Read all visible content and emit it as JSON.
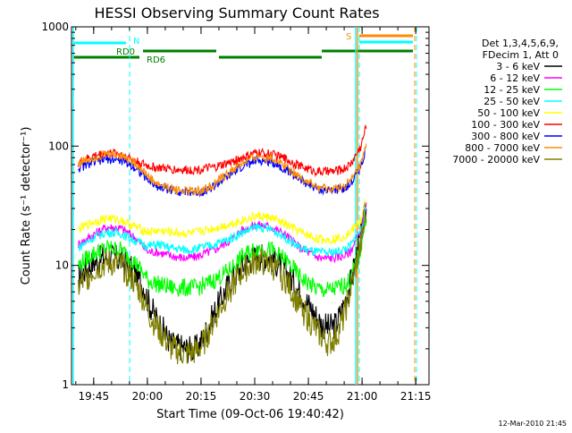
{
  "chart_data": {
    "type": "line",
    "title": "HESSI Observing Summary Count Rates",
    "xlabel": "Start Time (09-Oct-06 19:40:42)",
    "ylabel": "Count Rate (s⁻¹ detector⁻¹)",
    "ylog": true,
    "xlim_minutes": [
      0,
      41.6
    ],
    "ylim": [
      1,
      1000
    ],
    "x_ticks": [
      {
        "label": "19:45",
        "minute": 4.3
      },
      {
        "label": "20:00",
        "minute": 19.3
      },
      {
        "label": "20:15",
        "minute": 34.3
      },
      {
        "label": "20:30",
        "minute": 49.3
      },
      {
        "label": "20:45",
        "minute": 64.3
      },
      {
        "label": "21:00",
        "minute": 79.3
      },
      {
        "label": "21:15",
        "minute": 94.3
      }
    ],
    "y_ticks": [
      {
        "label": "1",
        "value": 1
      },
      {
        "label": "10",
        "value": 10
      },
      {
        "label": "100",
        "value": 100
      },
      {
        "label": "1000",
        "value": 1000
      }
    ],
    "legend": {
      "placement": "right",
      "header": [
        "Det 1,3,4,5,6,9,",
        "FDecim 1, Att 0"
      ],
      "entries": [
        "3 - 6 keV",
        "6 - 12 keV",
        "12 - 25 keV",
        "25 - 50 keV",
        "50 - 100 keV",
        "100 - 300 keV",
        "300 - 800 keV",
        "800 - 7000 keV",
        "7000 - 20000 keV"
      ]
    },
    "series": [
      {
        "name": "3 - 6 keV",
        "color": "#000000",
        "x": [
          0,
          4,
          8,
          12,
          16,
          18.5,
          19.5,
          22,
          26,
          30,
          33,
          35,
          38,
          42,
          46,
          50,
          54,
          58,
          62,
          66,
          68,
          70,
          72,
          74,
          76,
          79,
          80.5
        ],
        "values": [
          8,
          10.5,
          12,
          11,
          8.5,
          6.5,
          5,
          3.5,
          2.2,
          2,
          2,
          2.5,
          4,
          7,
          10,
          12,
          11.5,
          9,
          6,
          4,
          3.2,
          3,
          3.2,
          4.5,
          7,
          18,
          30
        ]
      },
      {
        "name": "6 - 12 keV",
        "color": "#ff00ff",
        "x": [
          0,
          4,
          8,
          12,
          16,
          19.5,
          22,
          26,
          30,
          33,
          35,
          38,
          42,
          46,
          50,
          54,
          58,
          62,
          66,
          68,
          70,
          72,
          74,
          76,
          79,
          80.5
        ],
        "values": [
          15,
          18,
          21,
          20.5,
          17,
          13,
          13,
          12,
          11.5,
          11.8,
          12.5,
          13.5,
          16,
          20,
          22,
          21,
          18,
          14,
          12,
          11.5,
          11.5,
          11.7,
          12,
          13,
          20,
          32
        ]
      },
      {
        "name": "12 - 25 keV",
        "color": "#00ff00",
        "x": [
          0,
          4,
          8,
          12,
          16,
          19.5,
          22,
          26,
          30,
          33,
          35,
          38,
          42,
          46,
          50,
          54,
          58,
          62,
          66,
          68,
          70,
          72,
          74,
          76,
          79,
          80.5
        ],
        "values": [
          10,
          12.5,
          14,
          13.5,
          10.5,
          7.5,
          7,
          6.5,
          6.5,
          6.5,
          6.8,
          7.5,
          9,
          12,
          14,
          13.5,
          11,
          8,
          6.5,
          6.2,
          6.2,
          6.4,
          6.8,
          7.5,
          14,
          28
        ]
      },
      {
        "name": "25 - 50 keV",
        "color": "#00ffff",
        "x": [
          0,
          4,
          8,
          12,
          16,
          19.5,
          22,
          26,
          30,
          33,
          35,
          38,
          42,
          46,
          50,
          54,
          58,
          62,
          66,
          68,
          70,
          72,
          74,
          76,
          79,
          80.5
        ],
        "values": [
          14,
          17,
          19,
          18.5,
          16,
          14.5,
          15,
          14,
          13.5,
          13.7,
          14.2,
          15,
          16.5,
          19,
          21,
          20,
          17,
          14,
          13,
          12.8,
          12.8,
          13,
          13.5,
          14.5,
          20,
          30
        ]
      },
      {
        "name": "50 - 100 keV",
        "color": "#ffff00",
        "x": [
          0,
          4,
          8,
          12,
          16,
          19.5,
          22,
          26,
          30,
          33,
          35,
          38,
          42,
          46,
          50,
          54,
          58,
          62,
          66,
          68,
          70,
          72,
          74,
          76,
          79,
          80.5
        ],
        "values": [
          20,
          23,
          25,
          24,
          21,
          19,
          19.5,
          19,
          18.5,
          18.8,
          19.5,
          20.5,
          22,
          24,
          26,
          25,
          22,
          19,
          17,
          16.5,
          16.5,
          16.8,
          17.5,
          19,
          24,
          34
        ]
      },
      {
        "name": "100 - 300 keV",
        "color": "#ff0000",
        "x": [
          0,
          4,
          8,
          12,
          16,
          19.5,
          22,
          26,
          30,
          33,
          35,
          38,
          42,
          46,
          50,
          54,
          58,
          62,
          66,
          68,
          70,
          72,
          74,
          76,
          79,
          80.5
        ],
        "values": [
          72,
          82,
          88,
          86,
          75,
          68,
          66,
          64,
          63,
          63.5,
          64.5,
          66,
          72,
          80,
          88,
          86,
          78,
          68,
          62,
          61,
          61,
          62,
          64,
          70,
          100,
          150
        ]
      },
      {
        "name": "300 - 800 keV",
        "color": "#0000ff",
        "x": [
          0,
          4,
          8,
          12,
          16,
          19.5,
          22,
          26,
          30,
          33,
          35,
          38,
          42,
          46,
          50,
          54,
          58,
          62,
          66,
          68,
          70,
          72,
          74,
          76,
          79,
          80.5
        ],
        "values": [
          65,
          73,
          78,
          76,
          66,
          52,
          46,
          43,
          41,
          41,
          42,
          46,
          56,
          68,
          76,
          74,
          64,
          52,
          45,
          43,
          42.5,
          43,
          44.5,
          48,
          68,
          100
        ]
      },
      {
        "name": "800 - 7000 keV",
        "color": "#ff8c00",
        "x": [
          0,
          4,
          8,
          12,
          16,
          19.5,
          22,
          26,
          30,
          33,
          35,
          38,
          42,
          46,
          50,
          54,
          58,
          62,
          66,
          68,
          70,
          72,
          74,
          76,
          79,
          80.5
        ],
        "values": [
          72,
          80,
          86,
          84,
          72,
          56,
          48,
          44,
          42,
          42,
          43,
          48,
          60,
          72,
          82,
          80,
          68,
          55,
          46,
          44,
          43.5,
          44,
          46,
          50,
          70,
          100
        ]
      },
      {
        "name": "7000 - 20000 keV",
        "color": "#808000",
        "x": [
          0,
          4,
          8,
          12,
          16,
          18.5,
          19.5,
          22,
          26,
          30,
          33,
          35,
          38,
          42,
          46,
          50,
          54,
          58,
          62,
          66,
          68,
          70,
          72,
          74,
          76,
          79,
          80.5
        ],
        "values": [
          6.5,
          9,
          10.5,
          10,
          7,
          5,
          4,
          3,
          2,
          1.8,
          1.9,
          2.2,
          3.5,
          6,
          9,
          11,
          10,
          7.5,
          4.5,
          3,
          2.5,
          2.2,
          2.5,
          3.5,
          6,
          15,
          28
        ]
      }
    ],
    "state_bars": [
      {
        "label": "N",
        "color": "#00ffff",
        "value": 700
      },
      {
        "label": "RD0",
        "color": "#00ff00",
        "value": 560
      },
      {
        "label": "RD6",
        "color": "#008000",
        "value": 500
      },
      {
        "label": "S",
        "color": "#ff8c00",
        "value": 780
      }
    ],
    "footer_date": "12-Mar-2010 21:45"
  }
}
